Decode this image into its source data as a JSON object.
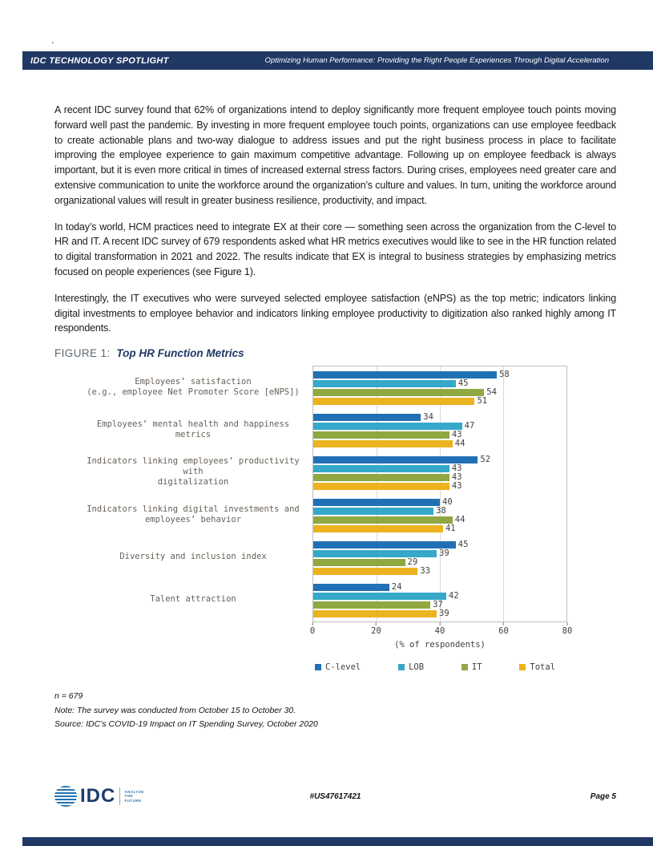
{
  "page": {
    "stray_mark": ".",
    "header": {
      "left": "IDC TECHNOLOGY SPOTLIGHT",
      "right": "Optimizing Human Performance: Providing the Right People Experiences Through Digital Acceleration"
    },
    "paragraphs": [
      "A recent IDC survey found that 62% of organizations intend to deploy significantly more frequent employee touch points moving forward well past the pandemic. By investing in more frequent employee touch points, organizations can use employee feedback to create actionable plans and two-way dialogue to address issues and put the right business process in place to facilitate improving the employee experience to gain maximum competitive advantage. Following up on employee feedback is always important, but it is even more critical in times of increased external stress factors. During crises, employees need greater care and extensive communication to unite the workforce around the organization’s culture and values. In turn, uniting the workforce around organizational values will result in greater business resilience, productivity, and impact.",
      "In today’s world, HCM practices need to integrate EX at their core — something seen across the organization from the C-level to HR and IT. A recent IDC survey of 679 respondents asked what HR metrics executives would like to see in the HR function related to digital transformation in 2021 and 2022. The results indicate that EX is integral to business strategies by emphasizing metrics focused on people experiences (see Figure 1).",
      "Interestingly, the IT executives who were surveyed selected employee satisfaction (eNPS) as the top metric; indicators linking digital investments to employee behavior and indicators linking employee productivity to digitization also ranked highly among IT respondents."
    ],
    "figure": {
      "label": "FIGURE 1:",
      "title": "Top HR Function Metrics"
    },
    "footnotes": [
      "n = 679",
      "Note: The survey was conducted from October 15 to October 30.",
      "Source: IDC’s COVID-19 Impact on IT Spending Survey, October 2020"
    ],
    "footer": {
      "logo_text": "IDC",
      "tagline_lines": [
        "ANALYZE",
        "THE",
        "FUTURE"
      ],
      "doc_id": "#US47617421",
      "page_number": "Page 5"
    }
  },
  "chart_data": {
    "type": "bar",
    "orientation": "horizontal",
    "title": "Top HR Function Metrics",
    "categories": [
      "Employees’ satisfaction\n(e.g., employee Net Promoter Score [eNPS])",
      "Employees’ mental health and happiness metrics",
      "Indicators linking employees’ productivity with\ndigitalization",
      "Indicators linking digital investments and\nemployees’ behavior",
      "Diversity and inclusion index",
      "Talent attraction"
    ],
    "series": [
      {
        "name": "C-level",
        "color": "#2170b5",
        "values": [
          58,
          34,
          52,
          40,
          45,
          24
        ]
      },
      {
        "name": "LOB",
        "color": "#36a8c9",
        "values": [
          45,
          47,
          43,
          38,
          39,
          42
        ]
      },
      {
        "name": "IT",
        "color": "#8fa842",
        "values": [
          54,
          43,
          43,
          44,
          29,
          37
        ]
      },
      {
        "name": "Total",
        "color": "#ecb320",
        "values": [
          51,
          44,
          43,
          41,
          33,
          39
        ]
      }
    ],
    "xlabel": "(% of respondents)",
    "xlim": [
      0,
      80
    ],
    "xticks": [
      0,
      20,
      40,
      60,
      80
    ],
    "grid": true,
    "legend_position": "bottom",
    "data_labels": true
  }
}
